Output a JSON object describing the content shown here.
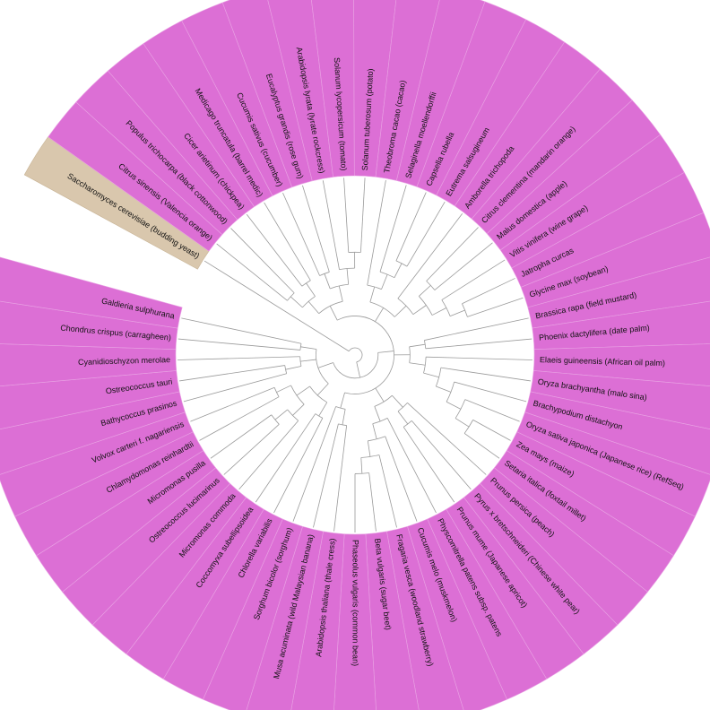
{
  "outgroup": "Saccharomyces cerevisiae (budding yeast)",
  "leaves": [
    "Citrus sinensis (Valencia orange)",
    "Populus trichocarpa (black cottonwood)",
    "Cicer arietinum (chickpea)",
    "Medicago truncatula (barrel medic)",
    "Cucumis sativus (cucumber)",
    "Eucalyptus grandis (rose gum)",
    "Arabidopsis lyrata (lyrate rockcress)",
    "Solanum lycopersicum (tomato)",
    "Solanum tuberosum (potato)",
    "Theobroma cacao (cacao)",
    "Selaginella moellendorffii",
    "Capsella rubella",
    "Eutrema salsugineum",
    "Amborella trichopoda",
    "Citrus clementina (mandarin orange)",
    "Malus domestica (apple)",
    "Vitis vinifera (wine grape)",
    "Jatropha curcas",
    "Glycine max (soybean)",
    "Brassica rapa (field mustard)",
    "Phoenix dactylifera (date palm)",
    "Elaeis guineensis (African oil palm)",
    "Oryza brachyantha (malo sina)",
    "Brachypodium distachyon",
    "Oryza sativa japonica (Japanese rice) (RefSeq)",
    "Zea mays (maize)",
    "Setaria italica (foxtail millet)",
    "Prunus persica (peach)",
    "Pyrus x bretschneideri (Chinese white pear)",
    "Prunus mume (Japanese apricot)",
    "Physcomitrella patens subsp. patens",
    "Cucumis melo (muskmelon)",
    "Fragaria vesca (woodland strawberry)",
    "Beta vulgaris (sugar beet)",
    "Phaseolus vulgaris (common bean)",
    "Arabidopsis thaliana (thale cress)",
    "Musa acuminata (wild Malaysian banana)",
    "Sorghum bicolor (sorghum)",
    "Chlorella variabilis",
    "Coccomyxa subellipsoidea",
    "Micromonas commoda",
    "Ostreococcus lucimarinus",
    "Micromonas pusilla",
    "Chlamydomonas reinhardtii",
    "Volvox carteri f. nagariensis",
    "Bathycoccus prasinos",
    "Ostreococcus tauri",
    "Cyanidioschyzon merolae",
    "Chondrus crispus (carragheen)",
    "Galdieria sulphurana"
  ]
}
